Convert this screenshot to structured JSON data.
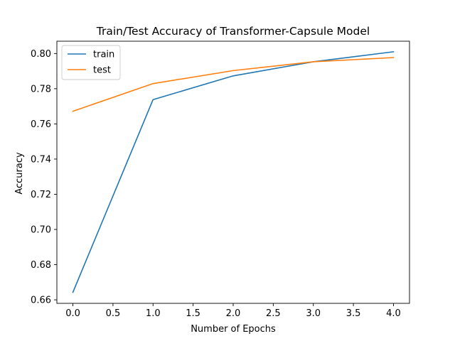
{
  "chart_data": {
    "type": "line",
    "title": "Train/Test Accuracy of Transformer-Capsule Model",
    "xlabel": "Number of Epochs",
    "ylabel": "Accuracy",
    "xlim": [
      -0.2,
      4.2
    ],
    "ylim": [
      0.658,
      0.807
    ],
    "x_ticks": [
      0.0,
      0.5,
      1.0,
      1.5,
      2.0,
      2.5,
      3.0,
      3.5,
      4.0
    ],
    "x_tick_labels": [
      "0.0",
      "0.5",
      "1.0",
      "1.5",
      "2.0",
      "2.5",
      "3.0",
      "3.5",
      "4.0"
    ],
    "y_ticks": [
      0.66,
      0.68,
      0.7,
      0.72,
      0.74,
      0.76,
      0.78,
      0.8
    ],
    "y_tick_labels": [
      "0.66",
      "0.68",
      "0.70",
      "0.72",
      "0.74",
      "0.76",
      "0.78",
      "0.80"
    ],
    "grid": false,
    "legend_position": "upper-left",
    "x": [
      0,
      1,
      2,
      3,
      4
    ],
    "series": [
      {
        "name": "train",
        "color": "#1f77b4",
        "values": [
          0.6643,
          0.7738,
          0.7873,
          0.7953,
          0.801
        ]
      },
      {
        "name": "test",
        "color": "#ff7f0e",
        "values": [
          0.7672,
          0.7829,
          0.7903,
          0.7953,
          0.7977
        ]
      }
    ]
  }
}
